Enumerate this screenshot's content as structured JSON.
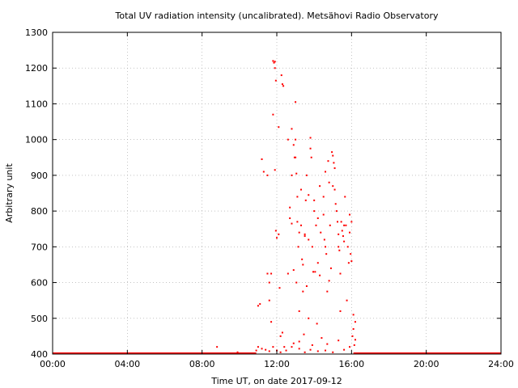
{
  "chart_data": {
    "type": "scatter",
    "title": "Total UV radiation intensity (uncalibrated). Metsähovi Radio Observatory",
    "xlabel": "Time UT, on date 2017-09-12",
    "ylabel": "Arbitrary unit",
    "x_unit": "hours UT",
    "xlim": [
      0,
      24
    ],
    "ylim": [
      400,
      1300
    ],
    "x_ticks": [
      {
        "v": 0,
        "label": "00:00"
      },
      {
        "v": 4,
        "label": "04:00"
      },
      {
        "v": 8,
        "label": "08:00"
      },
      {
        "v": 12,
        "label": "12:00"
      },
      {
        "v": 16,
        "label": "16:00"
      },
      {
        "v": 20,
        "label": "20:00"
      },
      {
        "v": 24,
        "label": "24:00"
      }
    ],
    "y_ticks": [
      {
        "v": 400,
        "label": "400"
      },
      {
        "v": 500,
        "label": "500"
      },
      {
        "v": 600,
        "label": "600"
      },
      {
        "v": 700,
        "label": "700"
      },
      {
        "v": 800,
        "label": "800"
      },
      {
        "v": 900,
        "label": "900"
      },
      {
        "v": 1000,
        "label": "1000"
      },
      {
        "v": 1100,
        "label": "1100"
      },
      {
        "v": 1200,
        "label": "1200"
      },
      {
        "v": 1300,
        "label": "1300"
      }
    ],
    "grid": true,
    "color": "#ff0000",
    "baseline": {
      "y": 400,
      "x_ranges": [
        [
          0,
          10.9
        ],
        [
          16.1,
          24
        ]
      ]
    },
    "series": [
      {
        "points": [
          [
            8.8,
            420
          ],
          [
            9.9,
            405
          ],
          [
            10.9,
            410
          ],
          [
            11.0,
            420
          ],
          [
            11.2,
            415
          ],
          [
            11.4,
            412
          ],
          [
            11.6,
            408
          ],
          [
            11.8,
            420
          ],
          [
            12.0,
            410
          ],
          [
            12.2,
            405
          ],
          [
            12.5,
            410
          ],
          [
            12.8,
            420
          ],
          [
            13.2,
            415
          ],
          [
            13.5,
            405
          ],
          [
            13.8,
            412
          ],
          [
            14.2,
            408
          ],
          [
            14.6,
            410
          ],
          [
            15.0,
            405
          ],
          [
            15.6,
            412
          ],
          [
            15.9,
            420
          ],
          [
            11.0,
            535
          ],
          [
            11.1,
            540
          ],
          [
            11.2,
            945
          ],
          [
            11.3,
            910
          ],
          [
            11.5,
            900
          ],
          [
            11.5,
            625
          ],
          [
            11.6,
            600
          ],
          [
            11.6,
            550
          ],
          [
            11.7,
            625
          ],
          [
            11.7,
            490
          ],
          [
            11.8,
            1220
          ],
          [
            11.85,
            1215
          ],
          [
            11.9,
            1218
          ],
          [
            11.9,
            1200
          ],
          [
            11.95,
            1165
          ],
          [
            11.8,
            1070
          ],
          [
            11.9,
            915
          ],
          [
            11.95,
            745
          ],
          [
            12.0,
            725
          ],
          [
            12.1,
            735
          ],
          [
            12.1,
            1035
          ],
          [
            12.15,
            585
          ],
          [
            12.25,
            1180
          ],
          [
            12.3,
            1155
          ],
          [
            12.35,
            1150
          ],
          [
            12.2,
            450
          ],
          [
            12.3,
            460
          ],
          [
            12.4,
            420
          ],
          [
            12.6,
            1000
          ],
          [
            12.6,
            625
          ],
          [
            12.7,
            810
          ],
          [
            12.7,
            780
          ],
          [
            12.8,
            900
          ],
          [
            12.8,
            1030
          ],
          [
            12.8,
            765
          ],
          [
            12.9,
            985
          ],
          [
            12.9,
            635
          ],
          [
            12.95,
            950
          ],
          [
            13.0,
            1105
          ],
          [
            13.0,
            1000
          ],
          [
            13.0,
            950
          ],
          [
            13.05,
            905
          ],
          [
            13.05,
            600
          ],
          [
            13.1,
            840
          ],
          [
            13.1,
            770
          ],
          [
            13.15,
            700
          ],
          [
            13.2,
            740
          ],
          [
            13.2,
            520
          ],
          [
            13.3,
            860
          ],
          [
            13.3,
            760
          ],
          [
            13.35,
            665
          ],
          [
            13.4,
            650
          ],
          [
            13.4,
            575
          ],
          [
            13.45,
            455
          ],
          [
            13.5,
            735
          ],
          [
            13.5,
            730
          ],
          [
            13.55,
            830
          ],
          [
            13.6,
            900
          ],
          [
            13.6,
            590
          ],
          [
            13.7,
            845
          ],
          [
            13.7,
            720
          ],
          [
            13.7,
            500
          ],
          [
            13.8,
            1005
          ],
          [
            13.8,
            975
          ],
          [
            13.85,
            950
          ],
          [
            13.9,
            700
          ],
          [
            13.95,
            630
          ],
          [
            14.0,
            830
          ],
          [
            14.0,
            800
          ],
          [
            14.05,
            630
          ],
          [
            14.1,
            760
          ],
          [
            14.15,
            485
          ],
          [
            14.2,
            780
          ],
          [
            14.2,
            655
          ],
          [
            14.3,
            870
          ],
          [
            14.3,
            620
          ],
          [
            14.35,
            740
          ],
          [
            14.4,
            445
          ],
          [
            14.5,
            840
          ],
          [
            14.5,
            790
          ],
          [
            14.55,
            720
          ],
          [
            14.6,
            910
          ],
          [
            14.6,
            700
          ],
          [
            14.65,
            680
          ],
          [
            14.7,
            575
          ],
          [
            14.75,
            940
          ],
          [
            14.8,
            880
          ],
          [
            14.8,
            605
          ],
          [
            14.85,
            760
          ],
          [
            14.9,
            640
          ],
          [
            14.95,
            965
          ],
          [
            15.0,
            955
          ],
          [
            15.0,
            870
          ],
          [
            15.05,
            935
          ],
          [
            15.1,
            860
          ],
          [
            15.1,
            920
          ],
          [
            15.15,
            820
          ],
          [
            15.2,
            800
          ],
          [
            15.25,
            770
          ],
          [
            15.3,
            735
          ],
          [
            15.3,
            700
          ],
          [
            15.35,
            690
          ],
          [
            15.4,
            625
          ],
          [
            15.4,
            520
          ],
          [
            15.45,
            770
          ],
          [
            15.5,
            745
          ],
          [
            15.55,
            730
          ],
          [
            15.6,
            760
          ],
          [
            15.6,
            715
          ],
          [
            15.65,
            840
          ],
          [
            15.7,
            760
          ],
          [
            15.75,
            550
          ],
          [
            15.8,
            700
          ],
          [
            15.85,
            655
          ],
          [
            15.9,
            790
          ],
          [
            15.9,
            740
          ],
          [
            15.95,
            680
          ],
          [
            16.0,
            770
          ],
          [
            16.0,
            660
          ],
          [
            16.05,
            450
          ],
          [
            16.1,
            510
          ],
          [
            16.1,
            470
          ],
          [
            16.15,
            425
          ],
          [
            16.2,
            440
          ],
          [
            16.2,
            490
          ],
          [
            13.2,
            435
          ],
          [
            13.9,
            425
          ],
          [
            14.7,
            428
          ],
          [
            15.3,
            438
          ],
          [
            12.9,
            430
          ]
        ]
      }
    ]
  }
}
